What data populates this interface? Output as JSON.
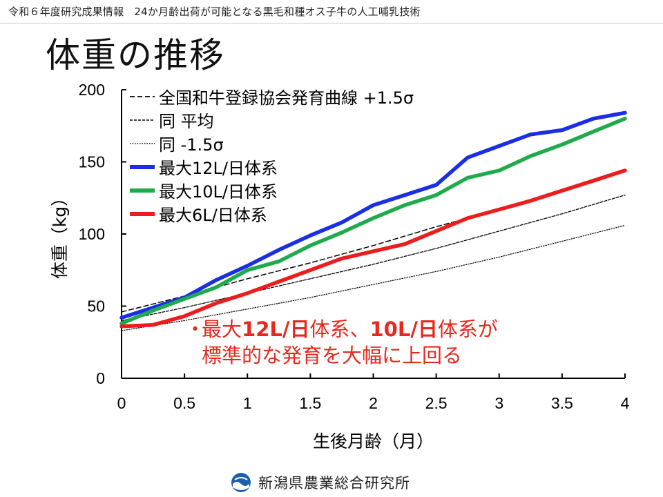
{
  "header": {
    "text": "令和６年度研究成果情報　24か月齢出荷が可能となる黒毛和種オス子牛の人工哺乳技術"
  },
  "title": "体重の推移",
  "footer": {
    "organization": "新潟県農業総合研究所",
    "logo_icon": "niigata-logo-icon"
  },
  "note": {
    "bullet": "・",
    "segments": [
      {
        "text": "最大",
        "bold": false
      },
      {
        "text": "12L/日",
        "bold": true
      },
      {
        "text": "体系、",
        "bold": false
      },
      {
        "text": "10L/日",
        "bold": true
      },
      {
        "text": "体系が",
        "bold": false
      }
    ],
    "line2": "標準的な発育を大幅に上回る"
  },
  "colors": {
    "blue": "#1a2ee6",
    "green": "#1fab4c",
    "red": "#ee1c1c",
    "note": "#e8281e"
  },
  "chart_data": {
    "type": "line",
    "xlabel": "生後月齢（月）",
    "ylabel": "体重（kg）",
    "xlim": [
      0,
      4
    ],
    "ylim": [
      0,
      200
    ],
    "xticks": [
      "0",
      "0.5",
      "1",
      "1.5",
      "2",
      "2.5",
      "3",
      "3.5",
      "4"
    ],
    "yticks": [
      "0",
      "50",
      "100",
      "150",
      "200"
    ],
    "grid": false,
    "legend_position": "top-left",
    "series": [
      {
        "name": "全国和牛登録協会発育曲線 +1.5σ",
        "style": "dashed",
        "color": "#000000",
        "x": [
          0,
          0.5,
          1,
          1.5,
          2,
          2.5,
          3,
          3.5,
          4
        ],
        "y": [
          46,
          57,
          69,
          80,
          92,
          105,
          117,
          131,
          145
        ]
      },
      {
        "name": "同 平均",
        "style": "dashed-fine",
        "color": "#000000",
        "x": [
          0,
          0.5,
          1,
          1.5,
          2,
          2.5,
          3,
          3.5,
          4
        ],
        "y": [
          40,
          49,
          59,
          69,
          79,
          90,
          102,
          114,
          127
        ]
      },
      {
        "name": "同 -1.5σ",
        "style": "dotted",
        "color": "#000000",
        "x": [
          0,
          0.5,
          1,
          1.5,
          2,
          2.5,
          3,
          3.5,
          4
        ],
        "y": [
          33,
          40,
          48,
          56,
          65,
          74,
          84,
          95,
          106
        ]
      },
      {
        "name": "最大12L/日体系",
        "style": "solid",
        "color": "#1a2ee6",
        "x": [
          0,
          0.25,
          0.5,
          0.75,
          1,
          1.25,
          1.5,
          1.75,
          2,
          2.25,
          2.5,
          2.75,
          3,
          3.25,
          3.5,
          3.75,
          4
        ],
        "y": [
          42,
          49,
          56,
          68,
          78,
          89,
          99,
          108,
          120,
          127,
          134,
          153,
          161,
          169,
          172,
          180,
          184
        ]
      },
      {
        "name": "最大10L/日体系",
        "style": "solid",
        "color": "#1fab4c",
        "x": [
          0,
          0.25,
          0.5,
          0.75,
          1,
          1.25,
          1.5,
          1.75,
          2,
          2.25,
          2.5,
          2.75,
          3,
          3.25,
          3.5,
          3.75,
          4
        ],
        "y": [
          38,
          47,
          55,
          63,
          75,
          81,
          92,
          101,
          111,
          120,
          127,
          139,
          144,
          154,
          162,
          171,
          180
        ]
      },
      {
        "name": "最大6L/日体系",
        "style": "solid",
        "color": "#ee1c1c",
        "x": [
          0,
          0.25,
          0.5,
          0.75,
          1,
          1.25,
          1.5,
          1.75,
          2,
          2.25,
          2.5,
          2.75,
          3,
          3.25,
          3.5,
          3.75,
          4
        ],
        "y": [
          36,
          37,
          43,
          52,
          59,
          67,
          75,
          83,
          88,
          93,
          102,
          111,
          117,
          123,
          130,
          137,
          144
        ]
      }
    ]
  }
}
